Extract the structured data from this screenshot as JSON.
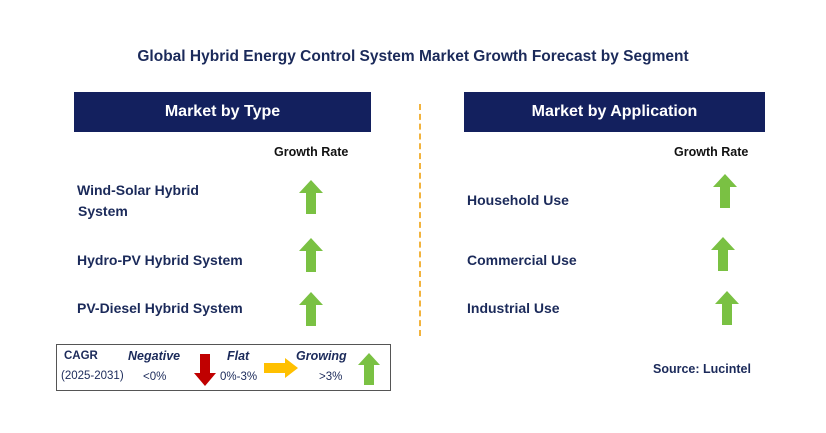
{
  "title": "Global Hybrid Energy Control System Market Growth Forecast by Segment",
  "left_panel": {
    "header": "Market by Type",
    "growth_rate_label": "Growth Rate",
    "rows": [
      {
        "label_line1": "Wind-Solar Hybrid",
        "label_line2": "System",
        "trend": "growing"
      },
      {
        "label": "Hydro-PV Hybrid System",
        "trend": "growing"
      },
      {
        "label": "PV-Diesel Hybrid System",
        "trend": "growing"
      }
    ]
  },
  "right_panel": {
    "header": "Market by Application",
    "growth_rate_label": "Growth Rate",
    "rows": [
      {
        "label": "Household Use",
        "trend": "growing"
      },
      {
        "label": "Commercial Use",
        "trend": "growing"
      },
      {
        "label": "Industrial Use",
        "trend": "growing"
      }
    ]
  },
  "legend": {
    "cagr_label": "CAGR",
    "period": "(2025-2031)",
    "negative": {
      "label": "Negative",
      "value": "<0%",
      "color": "#c00000",
      "icon": "down-arrow-icon"
    },
    "flat": {
      "label": "Flat",
      "value": "0%-3%",
      "color": "#ffc000",
      "icon": "right-arrow-icon"
    },
    "growing": {
      "label": "Growing",
      "value": ">3%",
      "color": "#7ac143",
      "icon": "up-arrow-icon"
    }
  },
  "source": "Source: Lucintel",
  "colors": {
    "header_bg": "#13205e",
    "text": "#1b2a5a",
    "divider": "#f2b33d",
    "up_arrow": "#7ac143"
  }
}
